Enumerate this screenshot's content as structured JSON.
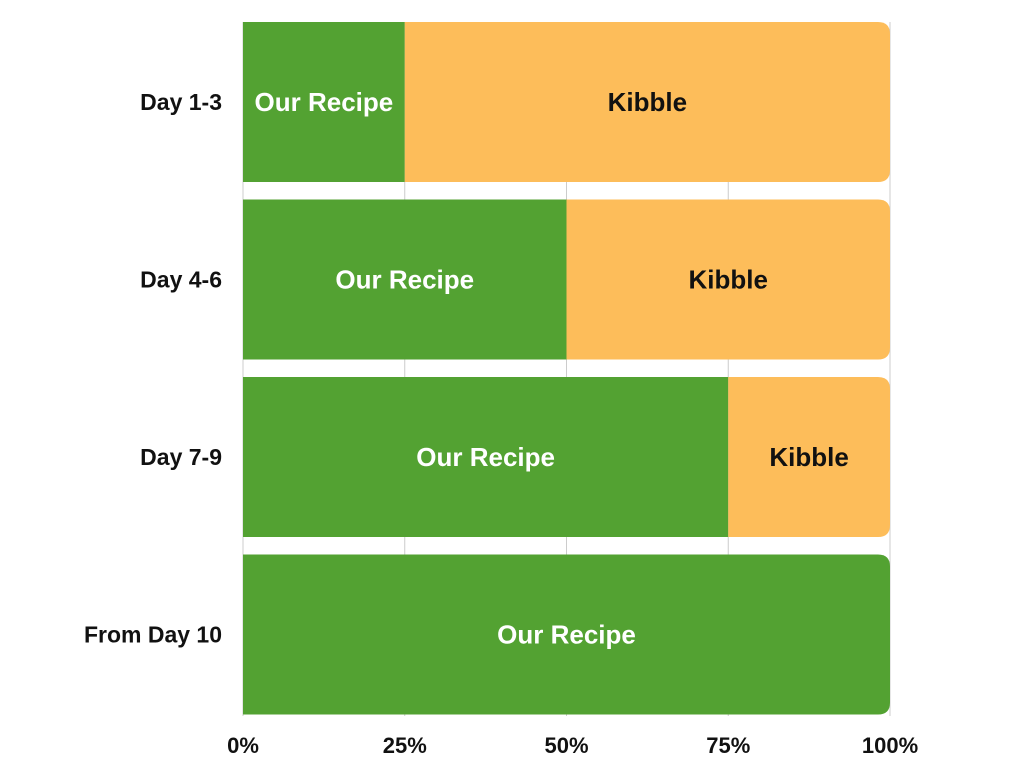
{
  "chart_data": {
    "type": "bar",
    "orientation": "horizontal",
    "stacked": true,
    "normalized": true,
    "title": "",
    "xlabel": "",
    "ylabel": "",
    "categories": [
      "Day 1-3",
      "Day 4-6",
      "Day 7-9",
      "From Day 10"
    ],
    "series": [
      {
        "name": "Our Recipe",
        "color": "#53a232",
        "label_color": "#ffffff",
        "values": [
          25,
          50,
          75,
          100
        ]
      },
      {
        "name": "Kibble",
        "color": "#fdbd5a",
        "label_color": "#111111",
        "values": [
          75,
          50,
          25,
          0
        ]
      }
    ],
    "xlim": [
      0,
      100
    ],
    "xticks": [
      0,
      25,
      50,
      75,
      100
    ],
    "xtick_labels": [
      "0%",
      "25%",
      "50%",
      "75%",
      "100%"
    ],
    "grid": "vertical",
    "grid_color": "#cccccc",
    "legend": "none",
    "segment_labels": "series name inside each segment"
  }
}
